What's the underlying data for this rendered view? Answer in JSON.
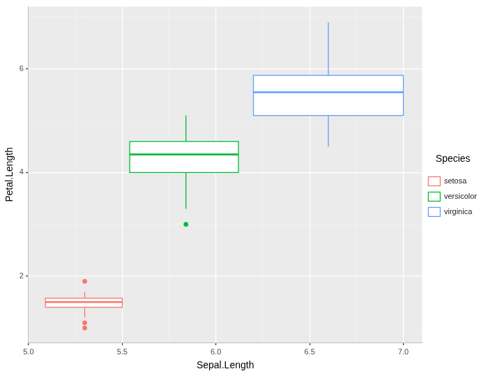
{
  "chart_data": {
    "type": "boxplot",
    "x_label": "Sepal.Length",
    "y_label": "Petal.Length",
    "legend": "right",
    "legend_title": "Species",
    "grid": true,
    "xlim": [
      5.0,
      7.1
    ],
    "xticks": [
      {
        "value": 5.0,
        "label": "5.0"
      },
      {
        "value": 5.5,
        "label": "5.5"
      },
      {
        "value": 6.0,
        "label": "6.0"
      },
      {
        "value": 6.5,
        "label": "6.5"
      },
      {
        "value": 7.0,
        "label": "7.0"
      }
    ],
    "ylim": [
      0.72,
      7.2
    ],
    "yticks": [
      2,
      4,
      6
    ],
    "series": [
      {
        "name": "setosa",
        "color": "#F8766D",
        "x": 5.3,
        "box_xmin": 5.09,
        "box_xmax": 5.5,
        "lower_whisker": 1.2,
        "q1": 1.4,
        "median": 1.5,
        "q3": 1.575,
        "upper_whisker": 1.7,
        "outliers": [
          1.0,
          1.1,
          1.9
        ]
      },
      {
        "name": "versicolor",
        "color": "#00BA38",
        "x": 5.84,
        "box_xmin": 5.54,
        "box_xmax": 6.12,
        "lower_whisker": 3.3,
        "q1": 4.0,
        "median": 4.35,
        "q3": 4.6,
        "upper_whisker": 5.1,
        "outliers": [
          3.0
        ]
      },
      {
        "name": "virginica",
        "color": "#619CFF",
        "x": 6.6,
        "box_xmin": 6.2,
        "box_xmax": 7.0,
        "lower_whisker": 4.5,
        "q1": 5.1,
        "median": 5.55,
        "q3": 5.875,
        "upper_whisker": 6.9,
        "outliers": []
      }
    ]
  }
}
